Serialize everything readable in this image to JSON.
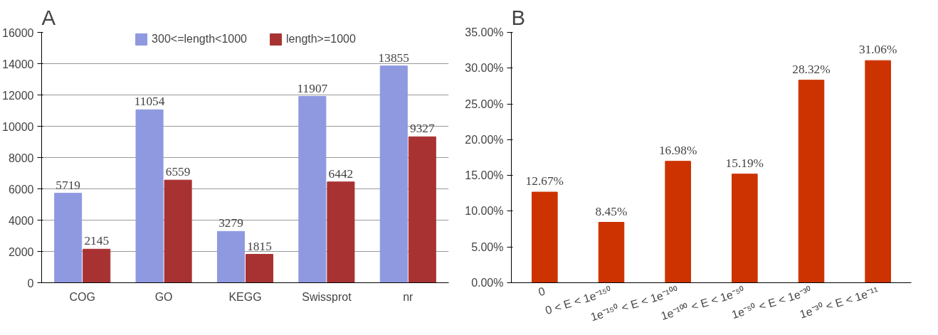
{
  "chart_data": [
    {
      "type": "bar",
      "title": "A",
      "categories": [
        "COG",
        "GO",
        "KEGG",
        "Swissprot",
        "nr"
      ],
      "series": [
        {
          "name": "300<=length<1000",
          "color": "#8e99e0",
          "values": [
            5719,
            11054,
            3279,
            11907,
            13855
          ]
        },
        {
          "name": "length>=1000",
          "color": "#a83232",
          "values": [
            2145,
            6559,
            1815,
            6442,
            9327
          ]
        }
      ],
      "ylim": [
        0,
        16000
      ],
      "yticks": [
        0,
        2000,
        4000,
        6000,
        8000,
        10000,
        12000,
        14000,
        16000
      ],
      "grid": "y",
      "legend": "top",
      "data_labels": true
    },
    {
      "type": "bar",
      "title": "B",
      "categories": [
        "0",
        "0 < E < 1e⁻¹⁵⁰",
        "1e⁻¹⁵⁰ < E < 1e⁻¹⁰⁰",
        "1e⁻¹⁰⁰ < E < 1e⁻⁵⁰",
        "1e⁻⁵⁰ < E < 1e⁻³⁰",
        "1e⁻³⁰ < E < 1e⁻¹¹"
      ],
      "series": [
        {
          "color": "#cc3300",
          "values": [
            12.67,
            8.45,
            16.98,
            15.19,
            28.32,
            31.06
          ],
          "value_labels": [
            "12.67%",
            "8.45%",
            "16.98%",
            "15.19%",
            "28.32%",
            "31.06%"
          ]
        }
      ],
      "ylim": [
        0,
        35
      ],
      "yticks": [
        {
          "value": 0,
          "label": "0.00%"
        },
        {
          "value": 5,
          "label": "5.00%"
        },
        {
          "value": 10,
          "label": "10.00%"
        },
        {
          "value": 15,
          "label": "15.00%"
        },
        {
          "value": 20,
          "label": "20.00%"
        },
        {
          "value": 25,
          "label": "25.00%"
        },
        {
          "value": 30,
          "label": "30.00%"
        },
        {
          "value": 35,
          "label": "35.00%"
        }
      ],
      "grid": false,
      "legend": false
    }
  ]
}
